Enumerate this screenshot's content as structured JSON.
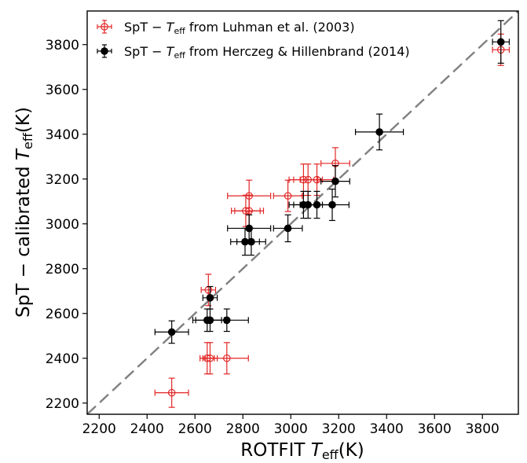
{
  "chart_data": {
    "type": "scatter",
    "xlabel": {
      "main": "ROTFIT ",
      "italic": "T",
      "sub": "eff",
      "unit": "(K)"
    },
    "ylabel": {
      "main": "SpT − calibrated ",
      "italic": "T",
      "sub": "eff",
      "unit": "(K)"
    },
    "xlim": [
      2150,
      3950
    ],
    "ylim": [
      2150,
      3950
    ],
    "xticks": [
      2200,
      2400,
      2600,
      2800,
      3000,
      3200,
      3400,
      3600,
      3800
    ],
    "yticks": [
      2200,
      2400,
      2600,
      2800,
      3000,
      3200,
      3400,
      3600,
      3800
    ],
    "grid": false,
    "legend_position": "top-left",
    "reference_line": {
      "style": "dashed",
      "color": "#808080",
      "x": [
        2150,
        3950
      ],
      "y": [
        2150,
        3950
      ]
    },
    "series": [
      {
        "name": {
          "prefix": "SpT − ",
          "italic": "T",
          "sub": "eff",
          "suffix": " from Luhman et al. (2003)"
        },
        "color": "#e32626",
        "marker": "open-circle",
        "points": [
          {
            "x": 2503,
            "y": 2246,
            "xerr": 70,
            "yerr": 65
          },
          {
            "x": 2651,
            "y": 2400,
            "xerr": 30,
            "yerr": 70
          },
          {
            "x": 2663,
            "y": 2400,
            "xerr": 30,
            "yerr": 70
          },
          {
            "x": 2733,
            "y": 2400,
            "xerr": 90,
            "yerr": 70
          },
          {
            "x": 2656,
            "y": 2705,
            "xerr": 30,
            "yerr": 70
          },
          {
            "x": 2812,
            "y": 3058,
            "xerr": 60,
            "yerr": 70
          },
          {
            "x": 2826,
            "y": 3058,
            "xerr": 60,
            "yerr": 70
          },
          {
            "x": 2826,
            "y": 3125,
            "xerr": 90,
            "yerr": 70
          },
          {
            "x": 2988,
            "y": 3125,
            "xerr": 60,
            "yerr": 70
          },
          {
            "x": 3053,
            "y": 3197,
            "xerr": 60,
            "yerr": 70
          },
          {
            "x": 3072,
            "y": 3197,
            "xerr": 60,
            "yerr": 70
          },
          {
            "x": 3109,
            "y": 3197,
            "xerr": 70,
            "yerr": 70
          },
          {
            "x": 3186,
            "y": 3270,
            "xerr": 60,
            "yerr": 70
          },
          {
            "x": 3877,
            "y": 3777,
            "xerr": 35,
            "yerr": 70
          }
        ]
      },
      {
        "name": {
          "prefix": "SpT − ",
          "italic": "T",
          "sub": "eff",
          "suffix": " from Herczeg & Hillenbrand (2014)"
        },
        "color": "#000000",
        "marker": "filled-circle",
        "points": [
          {
            "x": 2503,
            "y": 2517,
            "xerr": 70,
            "yerr": 50
          },
          {
            "x": 2651,
            "y": 2570,
            "xerr": 60,
            "yerr": 50
          },
          {
            "x": 2663,
            "y": 2570,
            "xerr": 60,
            "yerr": 50
          },
          {
            "x": 2733,
            "y": 2570,
            "xerr": 90,
            "yerr": 50
          },
          {
            "x": 2663,
            "y": 2670,
            "xerr": 30,
            "yerr": 50
          },
          {
            "x": 2809,
            "y": 2920,
            "xerr": 60,
            "yerr": 60
          },
          {
            "x": 2835,
            "y": 2920,
            "xerr": 60,
            "yerr": 60
          },
          {
            "x": 2826,
            "y": 2980,
            "xerr": 90,
            "yerr": 60
          },
          {
            "x": 2988,
            "y": 2980,
            "xerr": 60,
            "yerr": 60
          },
          {
            "x": 3053,
            "y": 3085,
            "xerr": 60,
            "yerr": 60
          },
          {
            "x": 3072,
            "y": 3085,
            "xerr": 60,
            "yerr": 60
          },
          {
            "x": 3109,
            "y": 3085,
            "xerr": 70,
            "yerr": 60
          },
          {
            "x": 3173,
            "y": 3085,
            "xerr": 70,
            "yerr": 70
          },
          {
            "x": 3186,
            "y": 3190,
            "xerr": 60,
            "yerr": 70
          },
          {
            "x": 3370,
            "y": 3410,
            "xerr": 100,
            "yerr": 80
          },
          {
            "x": 3877,
            "y": 3812,
            "xerr": 35,
            "yerr": 95
          }
        ]
      }
    ]
  }
}
